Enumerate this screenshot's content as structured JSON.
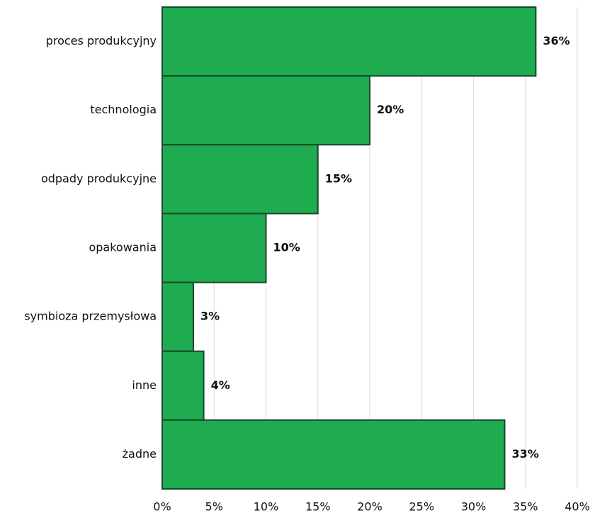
{
  "chart_data": {
    "type": "bar",
    "orientation": "horizontal",
    "categories": [
      "proces produkcyjny",
      "technologia",
      "odpady produkcyjne",
      "opakowania",
      "symbioza przemysłowa",
      "inne",
      "żadne"
    ],
    "values": [
      36,
      20,
      15,
      10,
      3,
      4,
      33
    ],
    "value_labels": [
      "36%",
      "20%",
      "15%",
      "10%",
      "3%",
      "4%",
      "33%"
    ],
    "color": "#1fab4f",
    "xlim": [
      0,
      40
    ],
    "xticks": [
      {
        "value": 0,
        "label": "0%"
      },
      {
        "value": 5,
        "label": "5%"
      },
      {
        "value": 10,
        "label": "10%"
      },
      {
        "value": 15,
        "label": "15%"
      },
      {
        "value": 20,
        "label": "20%"
      },
      {
        "value": 25,
        "label": "25%"
      },
      {
        "value": 30,
        "label": "30%"
      },
      {
        "value": 35,
        "label": "35%"
      },
      {
        "value": 40,
        "label": "40%"
      }
    ],
    "grid": true
  }
}
